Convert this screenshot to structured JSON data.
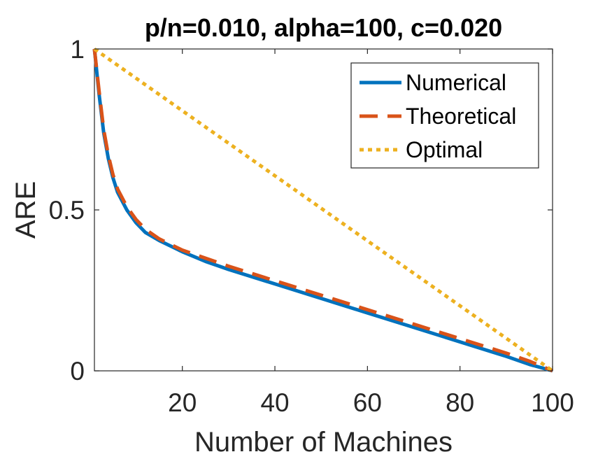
{
  "chart_data": {
    "type": "line",
    "title": "p/n=0.010, alpha=100, c=0.020",
    "xlabel": "Number of Machines",
    "ylabel": "ARE",
    "xlim": [
      1,
      100
    ],
    "ylim": [
      0,
      1
    ],
    "xticks": [
      20,
      40,
      60,
      80,
      100
    ],
    "yticks": [
      0,
      0.5,
      1
    ],
    "grid": false,
    "legend_position": "top-right",
    "series": [
      {
        "name": "Numerical",
        "style": "solid",
        "color": "#0072BD",
        "x": [
          1,
          2,
          3,
          4,
          5,
          6,
          8,
          10,
          12,
          15,
          20,
          25,
          30,
          40,
          50,
          60,
          70,
          80,
          90,
          95,
          100
        ],
        "y": [
          1.0,
          0.86,
          0.74,
          0.66,
          0.6,
          0.555,
          0.5,
          0.46,
          0.43,
          0.405,
          0.37,
          0.34,
          0.315,
          0.27,
          0.225,
          0.18,
          0.135,
          0.09,
          0.045,
          0.02,
          0.0
        ]
      },
      {
        "name": "Theoretical",
        "style": "dashed",
        "color": "#D95319",
        "x": [
          1,
          2,
          3,
          4,
          5,
          6,
          8,
          10,
          12,
          15,
          20,
          25,
          30,
          40,
          50,
          60,
          70,
          80,
          90,
          95,
          100
        ],
        "y": [
          1.0,
          0.87,
          0.75,
          0.67,
          0.61,
          0.565,
          0.51,
          0.47,
          0.44,
          0.41,
          0.375,
          0.35,
          0.325,
          0.28,
          0.235,
          0.19,
          0.145,
          0.1,
          0.055,
          0.03,
          0.0
        ]
      },
      {
        "name": "Optimal",
        "style": "dotted",
        "color": "#EDB120",
        "x": [
          1,
          100
        ],
        "y": [
          1.0,
          0.0
        ]
      }
    ]
  }
}
